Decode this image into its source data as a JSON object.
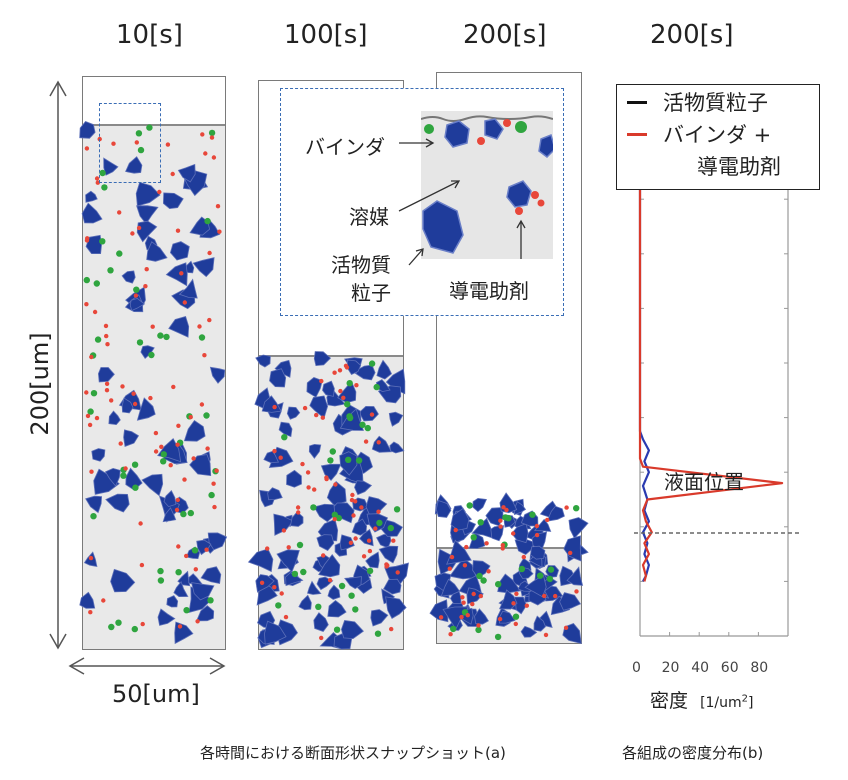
{
  "panel_a": {
    "time_labels": [
      "10[s]",
      "100[s]",
      "200[s]"
    ],
    "height_dimension": "200[um]",
    "width_dimension": "50[um]",
    "callouts": {
      "binder": "バインダ",
      "solvent": "溶媒",
      "active_line1": "活物質",
      "active_line2": "粒子",
      "conductive": "導電助剤"
    },
    "caption": "各時間における断面形状スナップショット(a)"
  },
  "panel_b": {
    "time_label": "200[s]",
    "legend": [
      {
        "label_lines": [
          "活物質粒子"
        ],
        "color": "#111111"
      },
      {
        "label_lines": [
          "バインダ +",
          "導電助剤"
        ],
        "color": "#d93a2b"
      }
    ],
    "annotation": "液面位置",
    "xlabel_main": "密度",
    "xlabel_unit_prefix": "[1/um",
    "xlabel_unit_sup": "2",
    "xlabel_unit_suffix": "]",
    "caption": "各組成の密度分布(b)"
  },
  "colors": {
    "active_particle": "#1f3c9b",
    "conductive_additive": "#e8473a",
    "binder": "#2fa53f",
    "solvent": "#e9e9e9",
    "series_binder": "#d93a2b",
    "series_active": "#2a3bb0"
  },
  "chart_data": {
    "type": "line",
    "title": "",
    "xlabel": "密度 [1/um2]",
    "ylabel": "",
    "x_ticks": [
      0,
      20,
      40,
      60,
      80
    ],
    "xlim": [
      0,
      100
    ],
    "ylim": [
      0,
      200
    ],
    "grid": false,
    "legend_position": "top",
    "series": [
      {
        "name": "活物質粒子",
        "color": "#2a3bb0",
        "points": [
          [
            0,
            200
          ],
          [
            0,
            75
          ],
          [
            2,
            72
          ],
          [
            6,
            68
          ],
          [
            3,
            64
          ],
          [
            6,
            60
          ],
          [
            2,
            55
          ],
          [
            5,
            50
          ],
          [
            3,
            46
          ],
          [
            6,
            42
          ],
          [
            2,
            38
          ],
          [
            5,
            34
          ],
          [
            3,
            30
          ],
          [
            6,
            26
          ],
          [
            4,
            22
          ],
          [
            2,
            20
          ]
        ]
      },
      {
        "name": "バインダ +\n導電助剤",
        "color": "#d93a2b",
        "points": [
          [
            0,
            200
          ],
          [
            0,
            65
          ],
          [
            2,
            62
          ],
          [
            96,
            56
          ],
          [
            5,
            50
          ],
          [
            2,
            46
          ],
          [
            4,
            42
          ],
          [
            8,
            38
          ],
          [
            3,
            34
          ],
          [
            6,
            30
          ],
          [
            2,
            26
          ],
          [
            4,
            22
          ],
          [
            3,
            20
          ]
        ]
      }
    ]
  }
}
